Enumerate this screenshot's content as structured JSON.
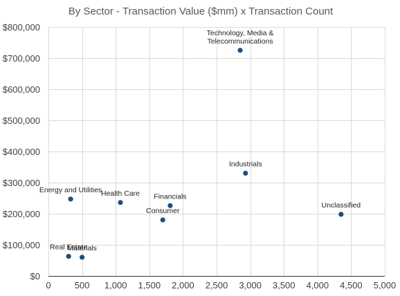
{
  "chart_data": {
    "type": "scatter",
    "title": "By Sector - Transaction Value ($mm) x Transaction Count",
    "xlabel": "",
    "ylabel": "",
    "xlim": [
      0,
      5000
    ],
    "ylim": [
      0,
      800000
    ],
    "x_ticks": [
      0,
      500,
      1000,
      1500,
      2000,
      2500,
      3000,
      3500,
      4000,
      4500,
      5000
    ],
    "y_ticks": [
      0,
      100000,
      200000,
      300000,
      400000,
      500000,
      600000,
      700000,
      800000
    ],
    "x_tick_labels": [
      "0",
      "500",
      "1,000",
      "1,500",
      "2,000",
      "2,500",
      "3,000",
      "3,500",
      "4,000",
      "4,500",
      "5,000"
    ],
    "y_tick_labels": [
      "$0",
      "$100,000",
      "$200,000",
      "$300,000",
      "$400,000",
      "$500,000",
      "$600,000",
      "$700,000",
      "$800,000"
    ],
    "grid": true,
    "legend": "none",
    "marker_color": "#1f4e79",
    "points": [
      {
        "label": [
          "Technology, Media &",
          "Telecommunications"
        ],
        "x": 2850,
        "y": 725000
      },
      {
        "label": [
          "Industrials"
        ],
        "x": 2930,
        "y": 330000
      },
      {
        "label": [
          "Unclassified"
        ],
        "x": 4350,
        "y": 198000
      },
      {
        "label": [
          "Health Care"
        ],
        "x": 1070,
        "y": 236000
      },
      {
        "label": [
          "Financials"
        ],
        "x": 1810,
        "y": 226000
      },
      {
        "label": [
          "Consumer"
        ],
        "x": 1700,
        "y": 180000
      },
      {
        "label": [
          "Energy and Utilities"
        ],
        "x": 330,
        "y": 247000
      },
      {
        "label": [
          "Real Estate"
        ],
        "x": 300,
        "y": 63000
      },
      {
        "label": [
          "Materials"
        ],
        "x": 500,
        "y": 60000
      }
    ]
  }
}
